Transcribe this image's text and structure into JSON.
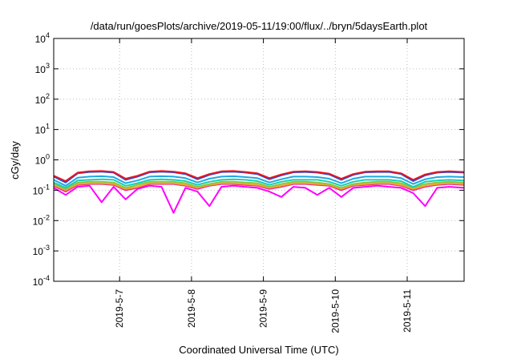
{
  "chart_data": {
    "type": "line",
    "title": "/data/run/goesPlots/archive/2019-05-11/19:00/flux/../bryn/5daysEarth.plot",
    "xlabel": "Coordinated Universal Time (UTC)",
    "ylabel": "cGy/day",
    "y_scale": "log",
    "ylim": [
      0.0001,
      10000
    ],
    "xlim": [
      "2019-05-06 02:00",
      "2019-05-11 19:00"
    ],
    "grid": true,
    "y_ticks": [
      {
        "value": 0.0001,
        "base": "10",
        "exp": "-4"
      },
      {
        "value": 0.001,
        "base": "10",
        "exp": "-3"
      },
      {
        "value": 0.01,
        "base": "10",
        "exp": "-2"
      },
      {
        "value": 0.1,
        "base": "10",
        "exp": "-1"
      },
      {
        "value": 1,
        "base": "10",
        "exp": "0"
      },
      {
        "value": 10,
        "base": "10",
        "exp": "1"
      },
      {
        "value": 100,
        "base": "10",
        "exp": "2"
      },
      {
        "value": 1000,
        "base": "10",
        "exp": "3"
      },
      {
        "value": 10000,
        "base": "10",
        "exp": "4"
      }
    ],
    "x_ticks": [
      {
        "value": "2019-05-07 00:00",
        "label": "2019-5-7"
      },
      {
        "value": "2019-05-08 00:00",
        "label": "2019-5-8"
      },
      {
        "value": "2019-05-09 00:00",
        "label": "2019-5-9"
      },
      {
        "value": "2019-05-10 00:00",
        "label": "2019-5-10"
      },
      {
        "value": "2019-05-11 00:00",
        "label": "2019-5-11"
      }
    ],
    "x": [
      "2019-05-06 02:00",
      "2019-05-06 06:00",
      "2019-05-06 10:00",
      "2019-05-06 14:00",
      "2019-05-06 18:00",
      "2019-05-06 22:00",
      "2019-05-07 02:00",
      "2019-05-07 06:00",
      "2019-05-07 10:00",
      "2019-05-07 14:00",
      "2019-05-07 18:00",
      "2019-05-07 22:00",
      "2019-05-08 02:00",
      "2019-05-08 06:00",
      "2019-05-08 10:00",
      "2019-05-08 14:00",
      "2019-05-08 18:00",
      "2019-05-08 22:00",
      "2019-05-09 02:00",
      "2019-05-09 06:00",
      "2019-05-09 10:00",
      "2019-05-09 14:00",
      "2019-05-09 18:00",
      "2019-05-09 22:00",
      "2019-05-10 02:00",
      "2019-05-10 06:00",
      "2019-05-10 10:00",
      "2019-05-10 14:00",
      "2019-05-10 18:00",
      "2019-05-10 22:00",
      "2019-05-11 02:00",
      "2019-05-11 06:00",
      "2019-05-11 10:00",
      "2019-05-11 14:00",
      "2019-05-11 19:00"
    ],
    "series": [
      {
        "color": "#e8141e",
        "values": [
          0.3,
          0.2,
          0.38,
          0.42,
          0.43,
          0.4,
          0.24,
          0.3,
          0.41,
          0.43,
          0.41,
          0.36,
          0.25,
          0.34,
          0.42,
          0.43,
          0.4,
          0.36,
          0.25,
          0.33,
          0.41,
          0.42,
          0.4,
          0.35,
          0.24,
          0.34,
          0.41,
          0.42,
          0.42,
          0.36,
          0.22,
          0.33,
          0.4,
          0.42,
          0.4
        ]
      },
      {
        "color": "#1f4fdc",
        "values": [
          0.28,
          0.18,
          0.36,
          0.4,
          0.41,
          0.38,
          0.22,
          0.28,
          0.39,
          0.41,
          0.39,
          0.34,
          0.23,
          0.32,
          0.4,
          0.41,
          0.38,
          0.34,
          0.23,
          0.31,
          0.39,
          0.4,
          0.38,
          0.33,
          0.22,
          0.32,
          0.39,
          0.4,
          0.4,
          0.34,
          0.2,
          0.31,
          0.38,
          0.4,
          0.38
        ]
      },
      {
        "color": "#1fa8e0",
        "values": [
          0.22,
          0.14,
          0.26,
          0.28,
          0.29,
          0.27,
          0.17,
          0.21,
          0.28,
          0.29,
          0.28,
          0.25,
          0.18,
          0.24,
          0.28,
          0.29,
          0.27,
          0.25,
          0.18,
          0.23,
          0.28,
          0.28,
          0.27,
          0.24,
          0.17,
          0.24,
          0.28,
          0.28,
          0.28,
          0.25,
          0.16,
          0.23,
          0.27,
          0.28,
          0.27
        ]
      },
      {
        "color": "#18d0b0",
        "values": [
          0.18,
          0.12,
          0.21,
          0.22,
          0.23,
          0.22,
          0.14,
          0.17,
          0.22,
          0.23,
          0.22,
          0.2,
          0.15,
          0.19,
          0.22,
          0.23,
          0.22,
          0.2,
          0.15,
          0.19,
          0.22,
          0.22,
          0.22,
          0.19,
          0.14,
          0.19,
          0.22,
          0.22,
          0.22,
          0.2,
          0.13,
          0.19,
          0.21,
          0.22,
          0.21
        ]
      },
      {
        "color": "#8cc63e",
        "values": [
          0.16,
          0.11,
          0.18,
          0.19,
          0.19,
          0.18,
          0.12,
          0.15,
          0.19,
          0.19,
          0.19,
          0.17,
          0.13,
          0.16,
          0.19,
          0.19,
          0.18,
          0.17,
          0.13,
          0.16,
          0.19,
          0.19,
          0.18,
          0.16,
          0.12,
          0.16,
          0.18,
          0.19,
          0.19,
          0.17,
          0.12,
          0.16,
          0.18,
          0.19,
          0.18
        ]
      },
      {
        "color": "#f3a52a",
        "values": [
          0.15,
          0.1,
          0.16,
          0.17,
          0.17,
          0.16,
          0.11,
          0.13,
          0.17,
          0.17,
          0.17,
          0.15,
          0.12,
          0.15,
          0.17,
          0.17,
          0.16,
          0.15,
          0.12,
          0.14,
          0.17,
          0.17,
          0.16,
          0.15,
          0.11,
          0.15,
          0.16,
          0.17,
          0.17,
          0.15,
          0.11,
          0.14,
          0.16,
          0.17,
          0.16
        ]
      },
      {
        "color": "#ef2b8e",
        "values": [
          0.14,
          0.09,
          0.15,
          0.16,
          0.16,
          0.15,
          0.1,
          0.12,
          0.16,
          0.16,
          0.16,
          0.14,
          0.11,
          0.14,
          0.16,
          0.16,
          0.15,
          0.14,
          0.11,
          0.13,
          0.16,
          0.16,
          0.15,
          0.14,
          0.1,
          0.14,
          0.15,
          0.16,
          0.16,
          0.14,
          0.1,
          0.13,
          0.15,
          0.16,
          0.15
        ]
      },
      {
        "color": "#ff00ff",
        "values": [
          0.12,
          0.07,
          0.13,
          0.14,
          0.04,
          0.13,
          0.05,
          0.11,
          0.14,
          0.13,
          0.018,
          0.12,
          0.09,
          0.03,
          0.13,
          0.14,
          0.13,
          0.12,
          0.09,
          0.06,
          0.13,
          0.12,
          0.07,
          0.12,
          0.06,
          0.12,
          0.13,
          0.14,
          0.13,
          0.12,
          0.08,
          0.03,
          0.12,
          0.13,
          0.12
        ]
      }
    ]
  }
}
